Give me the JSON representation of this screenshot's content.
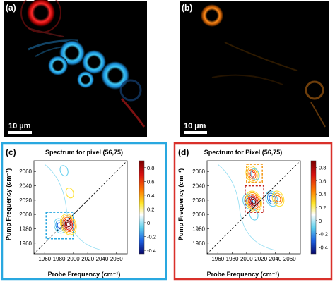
{
  "panels": {
    "a": {
      "label": "(a)",
      "scale_bar": "10 µm"
    },
    "b": {
      "label": "(b)",
      "scale_bar": "10 µm"
    },
    "c": {
      "label": "(c)",
      "frame_color": "#29a8e0"
    },
    "d": {
      "label": "(d)",
      "frame_color": "#d9302a"
    }
  },
  "chart_data": [
    {
      "type": "contour",
      "panel": "c",
      "title": "Spectrum for pixel (56,75)",
      "xlabel": "Probe Frequency (cm⁻¹)",
      "ylabel": "Pump Frequency (cm⁻¹)",
      "xlim": [
        1945,
        2075
      ],
      "ylim": [
        1945,
        2075
      ],
      "xticks": [
        1960,
        1980,
        2000,
        2020,
        2040,
        2060
      ],
      "yticks": [
        1960,
        1980,
        2000,
        2020,
        2040,
        2060
      ],
      "colorbar": {
        "range": [
          -0.45,
          0.9
        ],
        "ticks": [
          0.8,
          0.6,
          0.4,
          0.2,
          0,
          -0.2,
          -0.4
        ]
      },
      "diagonal": true,
      "peaks": [
        {
          "x": 1981,
          "y": 1984,
          "amp": -0.45
        },
        {
          "x": 1993,
          "y": 1986,
          "amp": 0.9
        },
        {
          "x": 1987,
          "y": 2061,
          "amp": -0.15
        },
        {
          "x": 1995,
          "y": 2030,
          "amp": 0.12
        }
      ],
      "highlight_boxes": [
        {
          "x": [
            1962,
            2000
          ],
          "y": [
            1966,
            2003
          ],
          "color": "#29a8e0"
        }
      ]
    },
    {
      "type": "contour",
      "panel": "d",
      "title": "Spectrum for Pixel (56,75)",
      "xlabel": "Probe Frequency (cm⁻¹)",
      "ylabel": "Pump Frequency (cm⁻¹)",
      "xlim": [
        1945,
        2075
      ],
      "ylim": [
        1945,
        2075
      ],
      "xticks": [
        1960,
        1980,
        2000,
        2020,
        2040,
        2060
      ],
      "yticks": [
        1960,
        1980,
        2000,
        2020,
        2040,
        2060
      ],
      "colorbar": {
        "range": [
          -0.5,
          0.9
        ],
        "ticks": [
          0.8,
          0.6,
          0.4,
          0.2,
          0,
          -0.2,
          -0.4
        ]
      },
      "diagonal": true,
      "peaks": [
        {
          "x": 2003,
          "y": 2018,
          "amp": -0.5
        },
        {
          "x": 2010,
          "y": 2018,
          "amp": 0.9
        },
        {
          "x": 2035,
          "y": 2022,
          "amp": -0.5
        },
        {
          "x": 2044,
          "y": 2022,
          "amp": 0.5
        },
        {
          "x": 2008,
          "y": 2056,
          "amp": 0.6
        },
        {
          "x": 2012,
          "y": 2056,
          "amp": -0.2
        },
        {
          "x": 2010,
          "y": 2000,
          "amp": -0.2
        }
      ],
      "highlight_boxes": [
        {
          "x": [
            2000,
            2022
          ],
          "y": [
            2045,
            2070
          ],
          "color": "#f39c20"
        },
        {
          "x": [
            1998,
            2024
          ],
          "y": [
            2003,
            2040
          ],
          "color": "#c0201b"
        }
      ]
    }
  ]
}
